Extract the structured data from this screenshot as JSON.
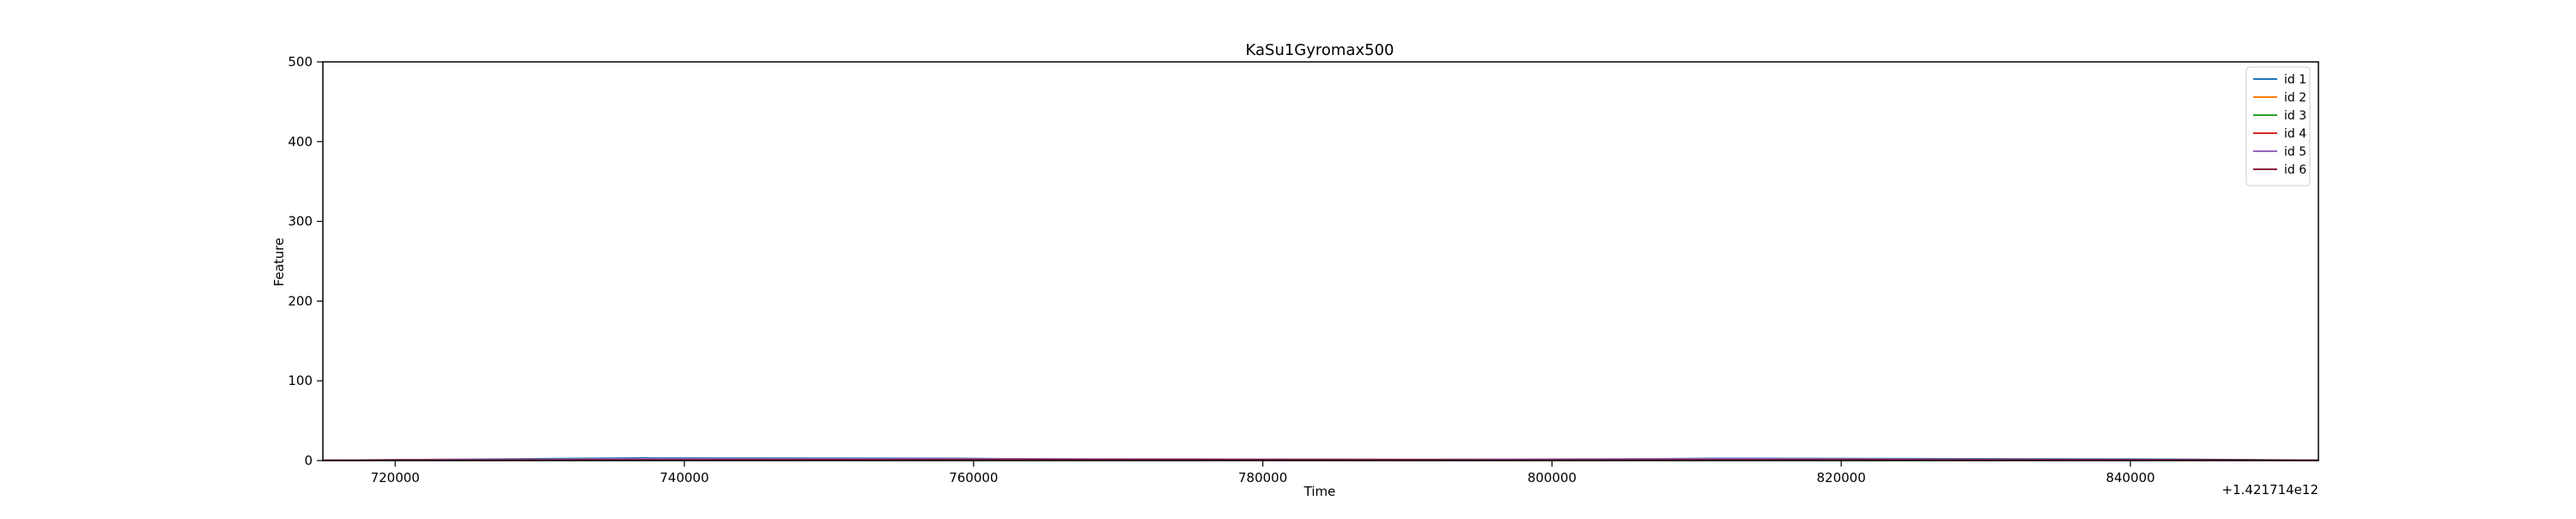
{
  "chart_data": {
    "type": "line",
    "title": "KaSu1Gyromax500",
    "xlabel": "Time",
    "ylabel": "Feature",
    "x_offset_label": "+1.421714e12",
    "xlim": [
      715000,
      853000
    ],
    "ylim": [
      0,
      500
    ],
    "x_ticks": [
      720000,
      740000,
      760000,
      780000,
      800000,
      820000,
      840000
    ],
    "x_tick_labels": [
      "720000",
      "740000",
      "760000",
      "780000",
      "800000",
      "820000",
      "840000"
    ],
    "y_ticks": [
      0,
      100,
      200,
      300,
      400,
      500
    ],
    "y_tick_labels": [
      "0",
      "100",
      "200",
      "300",
      "400",
      "500"
    ],
    "grid": false,
    "legend_position": "top-right",
    "series": [
      {
        "name": "id 1",
        "color": "#1f77b4",
        "x": [
          715000,
          723000,
          737000,
          759000,
          762000,
          780000,
          800000,
          805000,
          811000,
          840000,
          846000,
          853000
        ],
        "y": [
          0.5,
          1.5,
          3.5,
          3,
          2.5,
          0.5,
          0.5,
          2,
          3,
          2,
          1.5,
          0.5
        ]
      },
      {
        "name": "id 2",
        "color": "#ff7f0e",
        "x": [
          715000,
          733000,
          760000,
          790000,
          820000,
          853000
        ],
        "y": [
          0.5,
          1.5,
          2,
          1.5,
          1,
          0.5
        ]
      },
      {
        "name": "id 3",
        "color": "#2ca02c",
        "x": [
          715000,
          745000,
          775000,
          805000,
          835000,
          853000
        ],
        "y": [
          0.3,
          1,
          0.8,
          1.2,
          0.8,
          0.3
        ]
      },
      {
        "name": "id 4",
        "color": "#d62728",
        "x": [
          715000,
          723000,
          731000,
          741000,
          754000,
          761000,
          789000,
          804000,
          826000,
          832000,
          853000
        ],
        "y": [
          0.5,
          1.5,
          1.5,
          1.5,
          1.5,
          2,
          1.5,
          1.5,
          1.5,
          1.5,
          0.5
        ]
      },
      {
        "name": "id 5",
        "color": "#9467bd",
        "x": [
          715000,
          737000,
          759000,
          790000,
          811000,
          840000,
          853000
        ],
        "y": [
          0.4,
          2.5,
          2.5,
          1.5,
          2.5,
          1.5,
          0.4
        ]
      },
      {
        "name": "id 6",
        "color": "#8c1c3a",
        "x": [
          715000,
          730000,
          762000,
          795000,
          815000,
          848000,
          853000
        ],
        "y": [
          0.4,
          1,
          1.5,
          1,
          1.2,
          1,
          0.4
        ]
      }
    ]
  }
}
